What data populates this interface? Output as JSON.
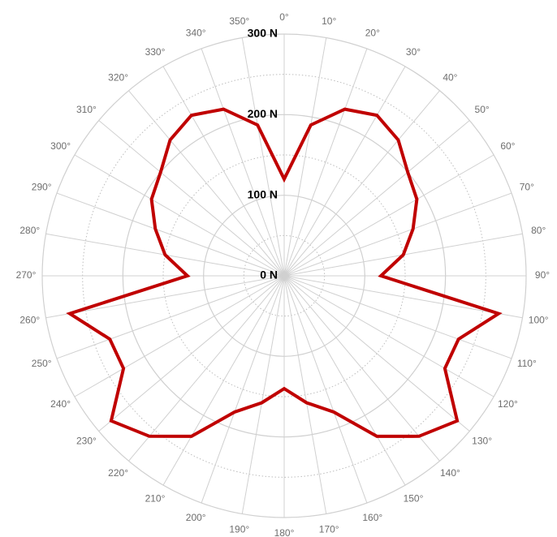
{
  "chart_data": {
    "type": "line",
    "subtype": "polar",
    "title": "",
    "angle_unit": "degrees",
    "angles": [
      0,
      10,
      20,
      30,
      40,
      50,
      60,
      70,
      80,
      90,
      100,
      110,
      120,
      130,
      140,
      150,
      160,
      170,
      180,
      190,
      200,
      210,
      220,
      230,
      240,
      250,
      260,
      270,
      280,
      290,
      300,
      310,
      320,
      330,
      340,
      350
    ],
    "angle_tick_labels": [
      "0°",
      "10°",
      "20°",
      "30°",
      "40°",
      "50°",
      "60°",
      "70°",
      "80°",
      "90°",
      "100°",
      "110°",
      "120°",
      "130°",
      "140°",
      "150°",
      "160°",
      "170°",
      "180°",
      "190°",
      "200°",
      "210°",
      "220°",
      "230°",
      "240°",
      "250°",
      "260°",
      "270°",
      "280°",
      "290°",
      "300°",
      "310°",
      "320°",
      "330°",
      "340°",
      "350°"
    ],
    "series": [
      {
        "values": [
          120,
          190,
          220,
          230,
          220,
          200,
          190,
          170,
          150,
          120,
          270,
          230,
          230,
          280,
          260,
          230,
          180,
          160,
          140,
          160,
          180,
          230,
          260,
          280,
          230,
          230,
          270,
          120,
          150,
          170,
          190,
          200,
          220,
          230,
          220,
          190
        ],
        "color": "#c00000"
      }
    ],
    "radial_range": [
      0,
      300
    ],
    "radial_ticks": [
      0,
      100,
      200,
      300
    ],
    "radial_tick_labels": [
      "0 N",
      "100 N",
      "200 N",
      "300 N"
    ],
    "grid": true,
    "legend": "none",
    "colors": {
      "series": "#c00000",
      "grid_major": "#d0d0d0",
      "grid_minor": "#bdbdbd",
      "angle_label": "#6e6e6e",
      "radial_label": "#000000"
    }
  }
}
